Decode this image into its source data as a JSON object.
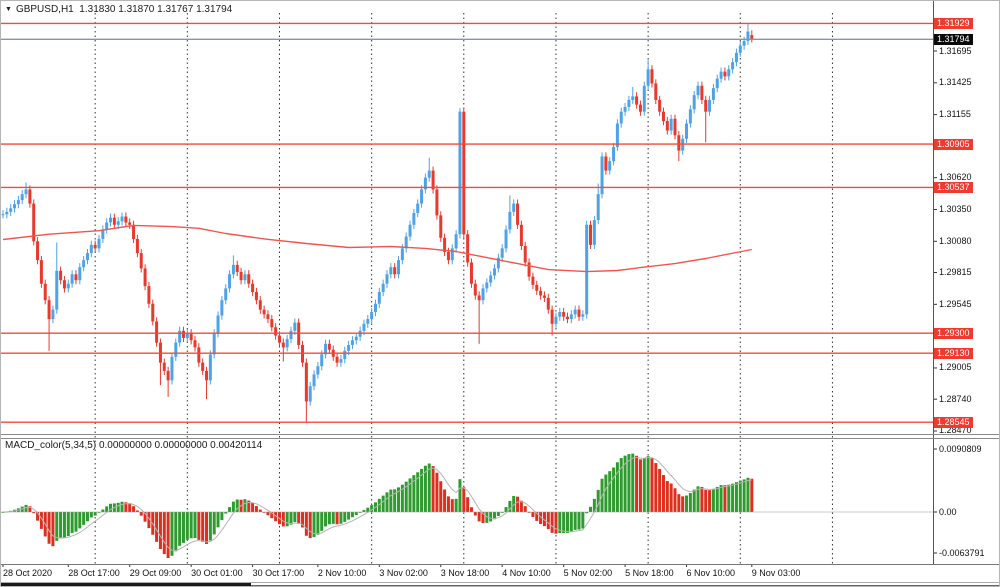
{
  "window": {
    "app": "MetaTrader chart",
    "bg": "#ffffff"
  },
  "icons": {
    "symbol_dropdown": "▼"
  },
  "main_chart": {
    "symbol_label": "GBPUSD,H1",
    "ohlc_label": "1.31830 1.31870 1.31767 1.31794",
    "current_price": {
      "value": 1.31794,
      "label": "1.31794"
    },
    "price_axis_labels": [
      {
        "text": "1.31695",
        "value": 1.31695
      },
      {
        "text": "1.31425",
        "value": 1.31425
      },
      {
        "text": "1.31155",
        "value": 1.31155
      },
      {
        "text": "1.30620",
        "value": 1.3062
      },
      {
        "text": "1.30350",
        "value": 1.3035
      },
      {
        "text": "1.30080",
        "value": 1.3008
      },
      {
        "text": "1.29815",
        "value": 1.29815
      },
      {
        "text": "1.29545",
        "value": 1.29545
      },
      {
        "text": "1.29005",
        "value": 1.29005
      },
      {
        "text": "1.28740",
        "value": 1.2874
      },
      {
        "text": "1.28470",
        "value": 1.2847
      }
    ],
    "hlines": [
      {
        "price": 1.31929,
        "label": "1.31929"
      },
      {
        "price": 1.30905,
        "label": "1.30905"
      },
      {
        "price": 1.30537,
        "label": "1.30537"
      },
      {
        "price": 1.293,
        "label": "1.29300"
      },
      {
        "price": 1.2913,
        "label": "1.29130"
      },
      {
        "price": 1.28545,
        "label": "1.28545"
      }
    ]
  },
  "indicator": {
    "title": "MACD_color(5,34,5)",
    "values_label": "0.00000000 0.00000000 0.00420114",
    "params": {
      "fast": 5,
      "slow": 34,
      "signal": 5
    },
    "axis_labels": [
      {
        "text": "0.0090809",
        "pos": "top"
      },
      {
        "text": "0.00",
        "pos": "zero"
      },
      {
        "text": "-0.0063791",
        "pos": "bottom"
      }
    ]
  },
  "time_axis": {
    "labels": [
      {
        "text": "28 Oct 2020",
        "bar": 0
      },
      {
        "text": "28 Oct 17:00",
        "bar": 17
      },
      {
        "text": "29 Oct 09:00",
        "bar": 33
      },
      {
        "text": "30 Oct 01:00",
        "bar": 49
      },
      {
        "text": "30 Oct 17:00",
        "bar": 65
      },
      {
        "text": "2 Nov 10:00",
        "bar": 82
      },
      {
        "text": "3 Nov 02:00",
        "bar": 98
      },
      {
        "text": "3 Nov 18:00",
        "bar": 114
      },
      {
        "text": "4 Nov 10:00",
        "bar": 130
      },
      {
        "text": "5 Nov 02:00",
        "bar": 146
      },
      {
        "text": "5 Nov 18:00",
        "bar": 162
      },
      {
        "text": "6 Nov 10:00",
        "bar": 178
      },
      {
        "text": "9 Nov 03:00",
        "bar": 195
      }
    ],
    "day_separator_bars": [
      24,
      48,
      72,
      96,
      120,
      144,
      168,
      192,
      216
    ]
  },
  "colors": {
    "candle_up": "#4da3e6",
    "candle_down": "#e8392b",
    "hline_red": "#f4493c",
    "ma_red": "#f0564c",
    "current_line": "#8795a5",
    "badge_red": "#ee3b2e",
    "badge_black": "#0a0a0a",
    "hist_up": "#2e9b2e",
    "hist_down": "#dd2f1f",
    "signal_gray": "#b4b4b4",
    "separator": "#333333"
  },
  "chart_data": {
    "type": "candlestick+macd",
    "symbol": "GBPUSD",
    "timeframe": "H1",
    "note": "hourly closes bar0 = 28 Oct 2020 00:00, weekends skipped",
    "closes": [
      1.3031,
      1.3033,
      1.3036,
      1.30395,
      1.3043,
      1.3048,
      1.3052,
      1.304,
      1.3008,
      1.2992,
      1.2972,
      1.2958,
      1.2942,
      1.295,
      1.2983,
      1.2975,
      1.2968,
      1.2972,
      1.298,
      1.2975,
      1.2986,
      1.2992,
      1.2998,
      1.3005,
      1.3002,
      1.301,
      1.3018,
      1.3024,
      1.3028,
      1.3022,
      1.3025,
      1.3029,
      1.3024,
      1.3022,
      1.301,
      1.2998,
      1.2985,
      1.297,
      1.2955,
      1.294,
      1.2922,
      1.2905,
      1.2898,
      1.289,
      1.291,
      1.2922,
      1.2932,
      1.2926,
      1.293,
      1.2924,
      1.2918,
      1.2905,
      1.2898,
      1.289,
      1.2912,
      1.293,
      1.2945,
      1.2958,
      1.2968,
      1.298,
      1.2988,
      1.2982,
      1.2975,
      1.298,
      1.2972,
      1.2965,
      1.2958,
      1.295,
      1.2946,
      1.2942,
      1.2935,
      1.2928,
      1.2922,
      1.2918,
      1.2925,
      1.2932,
      1.2939,
      1.292,
      1.2905,
      1.2872,
      1.2885,
      1.2895,
      1.2902,
      1.2912,
      1.2921,
      1.2916,
      1.291,
      1.2905,
      1.2908,
      1.2915,
      1.292,
      1.2924,
      1.2927,
      1.2932,
      1.2938,
      1.2942,
      1.2948,
      1.2955,
      1.2965,
      1.2972,
      1.298,
      1.2986,
      1.298,
      1.2992,
      1.3002,
      1.3012,
      1.3022,
      1.3032,
      1.304,
      1.3052,
      1.3062,
      1.3068,
      1.3052,
      1.303,
      1.3011,
      1.2999,
      1.2992,
      1.3002,
      1.3014,
      1.3118,
      1.3014,
      1.299,
      1.2972,
      1.2962,
      1.2958,
      1.2968,
      1.2973,
      1.2979,
      1.2985,
      1.2994,
      1.3002,
      1.3018,
      1.3033,
      1.304,
      1.3022,
      1.3004,
      1.299,
      1.2978,
      1.2971,
      1.2966,
      1.2962,
      1.296,
      1.295,
      1.2938,
      1.2944,
      1.2948,
      1.2944,
      1.2942,
      1.2946,
      1.295,
      1.2944,
      1.2946,
      1.3022,
      1.3005,
      1.3026,
      1.3048,
      1.308,
      1.3068,
      1.3076,
      1.3088,
      1.3108,
      1.3118,
      1.3122,
      1.3128,
      1.3131,
      1.3124,
      1.3118,
      1.314,
      1.3154,
      1.3142,
      1.3128,
      1.3118,
      1.311,
      1.3102,
      1.3112,
      1.3098,
      1.3085,
      1.3095,
      1.3108,
      1.312,
      1.3132,
      1.314,
      1.3128,
      1.3118,
      1.3128,
      1.3138,
      1.3146,
      1.3152,
      1.3148,
      1.3154,
      1.316,
      1.3168,
      1.3174,
      1.3178,
      1.3186,
      1.31794
    ],
    "wick_overrides": {
      "6": {
        "h": 1.3058
      },
      "12": {
        "l": 1.2915
      },
      "14": {
        "h": 1.3007
      },
      "41": {
        "l": 1.2886
      },
      "43": {
        "l": 1.2876
      },
      "53": {
        "l": 1.2874
      },
      "60": {
        "h": 1.2996
      },
      "73": {
        "l": 1.2906
      },
      "79": {
        "l": 1.28545
      },
      "111": {
        "h": 1.3079
      },
      "119": {
        "h": 1.3121
      },
      "124": {
        "l": 1.2921
      },
      "132": {
        "h": 1.3047
      },
      "143": {
        "l": 1.2928
      },
      "155": {
        "h": 1.3057
      },
      "164": {
        "h": 1.3139
      },
      "168": {
        "h": 1.3162
      },
      "176": {
        "l": 1.3076
      },
      "183": {
        "l": 1.3092
      },
      "194": {
        "h": 1.3193
      },
      "195": {
        "o": 1.3183,
        "h": 1.3187,
        "l": 1.31767
      }
    },
    "ma_line_points": [
      [
        0,
        1.30095
      ],
      [
        12,
        1.3014
      ],
      [
        25,
        1.3017
      ],
      [
        34,
        1.30215
      ],
      [
        44,
        1.30205
      ],
      [
        51,
        1.3019
      ],
      [
        58,
        1.30146
      ],
      [
        68,
        1.301
      ],
      [
        79,
        1.30061
      ],
      [
        90,
        1.30027
      ],
      [
        101,
        1.30036
      ],
      [
        110,
        1.3002
      ],
      [
        118,
        1.29993
      ],
      [
        126,
        1.29942
      ],
      [
        134,
        1.29891
      ],
      [
        142,
        1.2984
      ],
      [
        152,
        1.29823
      ],
      [
        160,
        1.29832
      ],
      [
        166,
        1.29857
      ],
      [
        175,
        1.29891
      ],
      [
        183,
        1.29934
      ],
      [
        191,
        1.29985
      ],
      [
        195,
        1.3001
      ]
    ],
    "macd_last_value": 0.00420114,
    "macd_axis_max": 0.0090809,
    "macd_axis_min": -0.0063791
  }
}
